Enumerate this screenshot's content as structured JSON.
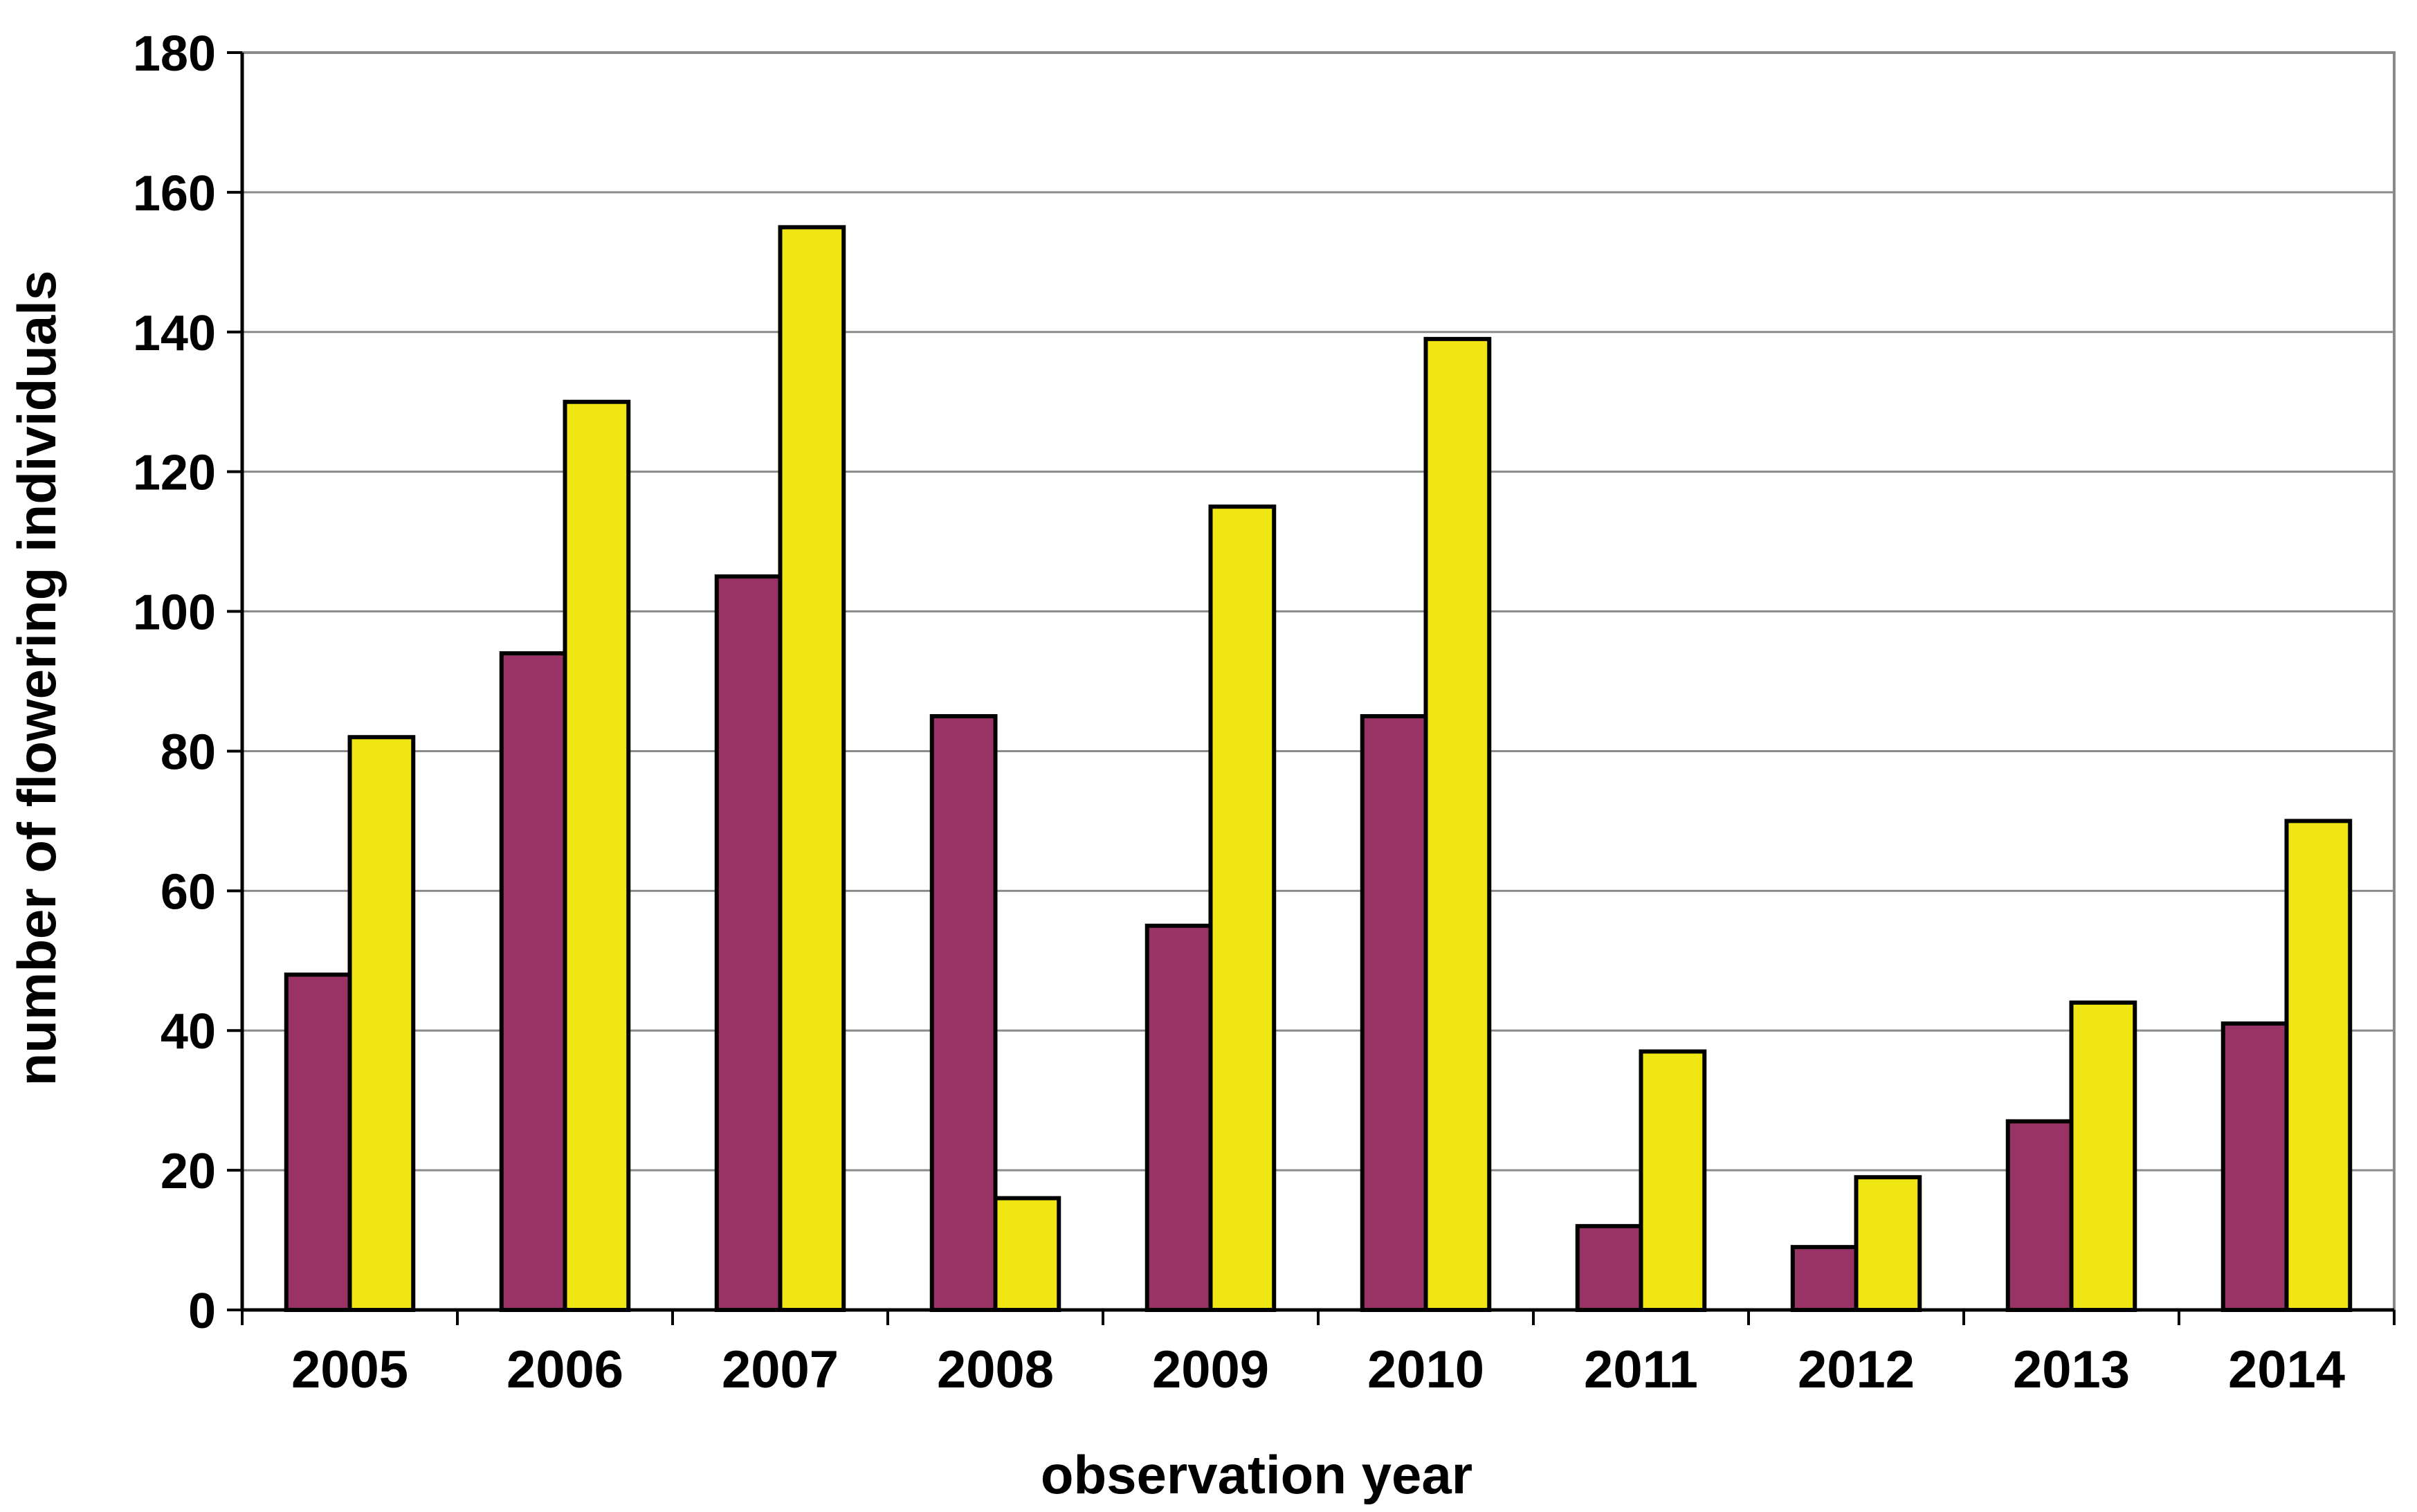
{
  "chart_data": {
    "type": "bar",
    "title": "",
    "xlabel": "observation year",
    "ylabel": "number of flowering individuals",
    "categories": [
      "2005",
      "2006",
      "2007",
      "2008",
      "2009",
      "2010",
      "2011",
      "2012",
      "2013",
      "2014"
    ],
    "series": [
      {
        "color": "#993366",
        "values": [
          48,
          94,
          105,
          85,
          55,
          85,
          12,
          9,
          27,
          41
        ]
      },
      {
        "color": "#F0E614",
        "values": [
          82,
          130,
          155,
          16,
          115,
          139,
          37,
          19,
          44,
          70
        ]
      }
    ],
    "ylim": [
      0,
      180
    ],
    "yticks": [
      0,
      20,
      40,
      60,
      80,
      100,
      120,
      140,
      160,
      180
    ],
    "grid": true,
    "legend": "none"
  }
}
